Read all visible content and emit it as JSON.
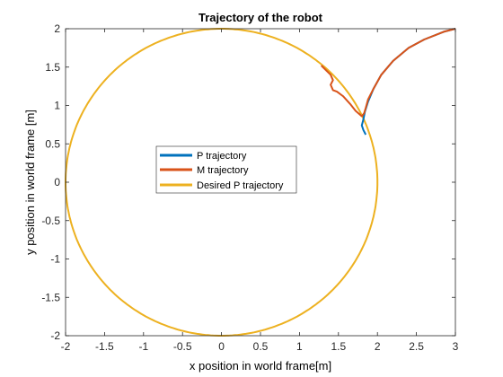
{
  "chart_data": {
    "type": "line",
    "title": "Trajectory of the robot",
    "xlabel": "x position in world frame[m]",
    "ylabel": "y position in world frame [m]",
    "xlim": [
      -2,
      3
    ],
    "ylim": [
      -2,
      2
    ],
    "xticks": [
      "-2",
      "-1.5",
      "-1",
      "-0.5",
      "0",
      "0.5",
      "1",
      "1.5",
      "2",
      "2.5",
      "3"
    ],
    "yticks": [
      "-2",
      "-1.5",
      "-1",
      "-0.5",
      "0",
      "0.5",
      "1",
      "1.5",
      "2"
    ],
    "grid": false,
    "legend_position": "center-left",
    "series": [
      {
        "name": "P trajectory",
        "color": "#0072BD",
        "x": [
          3.0,
          2.85,
          2.6,
          2.4,
          2.2,
          2.05,
          1.95,
          1.88,
          1.84,
          1.82,
          1.8,
          1.82,
          1.85
        ],
        "y": [
          2.0,
          1.96,
          1.86,
          1.75,
          1.58,
          1.4,
          1.22,
          1.05,
          0.92,
          0.82,
          0.74,
          0.68,
          0.62
        ]
      },
      {
        "name": "M trajectory",
        "color": "#D95319",
        "x": [
          3.0,
          2.85,
          2.6,
          2.4,
          2.2,
          2.05,
          1.95,
          1.88,
          1.85,
          1.83,
          1.8,
          1.72,
          1.65,
          1.56,
          1.48,
          1.43,
          1.4,
          1.43,
          1.4,
          1.33,
          1.28
        ],
        "y": [
          2.0,
          1.96,
          1.86,
          1.75,
          1.58,
          1.4,
          1.22,
          1.08,
          0.97,
          0.9,
          0.86,
          0.93,
          1.02,
          1.12,
          1.18,
          1.2,
          1.27,
          1.33,
          1.4,
          1.47,
          1.52
        ]
      },
      {
        "name": "Desired P trajectory",
        "color": "#EDB120",
        "shape": "circle",
        "center": [
          0,
          0
        ],
        "radius": 2
      }
    ]
  }
}
